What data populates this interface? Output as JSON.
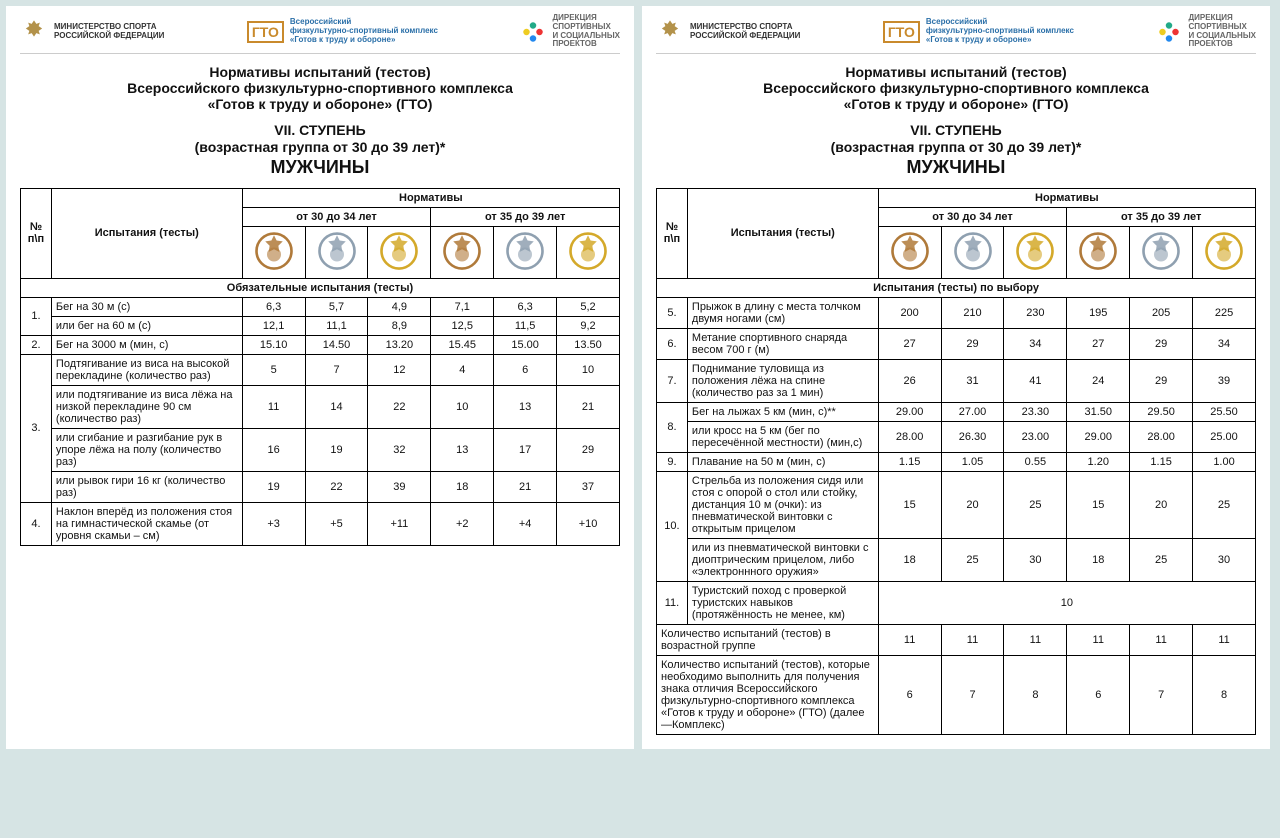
{
  "header": {
    "ministry_line1": "МИНИСТЕРСТВО СПОРТА",
    "ministry_line2": "РОССИЙСКОЙ ФЕДЕРАЦИИ",
    "gto_logo": "ГТО",
    "gto_line1": "Всероссийский",
    "gto_line2": "физкультурно-спортивный комплекс",
    "gto_line3": "«Готов к труду и обороне»",
    "dir_line1": "ДИРЕКЦИЯ",
    "dir_line2": "СПОРТИВНЫХ",
    "dir_line3": "И СОЦИАЛЬНЫХ",
    "dir_line4": "ПРОЕКТОВ"
  },
  "title": {
    "line1": "Нормативы испытаний (тестов)",
    "line2": "Всероссийского физкультурно-спортивного комплекса",
    "line3": "«Готов к труду и обороне» (ГТО)",
    "stage": "VII. СТУПЕНЬ",
    "age": "(возрастная группа от 30 до 39 лет)*",
    "gender": "МУЖЧИНЫ"
  },
  "thead": {
    "num": "№ п\\п",
    "test": "Испытания (тесты)",
    "norms": "Нормативы",
    "age1": "от 30 до 34 лет",
    "age2": "от 35 до 39 лет"
  },
  "badges": {
    "bronze": "#b07a3a",
    "silver": "#8fa0b0",
    "gold": "#d4a92a"
  },
  "left": {
    "section1": "Обязательные испытания (тесты)",
    "rows": [
      {
        "n": "1.",
        "t": "Бег на 30 м (с)",
        "a": [
          "6,3",
          "5,7",
          "4,9",
          "7,1",
          "6,3",
          "5,2"
        ]
      },
      {
        "n": "",
        "t": "или бег на 60 м (с)",
        "a": [
          "12,1",
          "11,1",
          "8,9",
          "12,5",
          "11,5",
          "9,2"
        ]
      },
      {
        "n": "2.",
        "t": "Бег на 3000 м (мин, с)",
        "a": [
          "15.10",
          "14.50",
          "13.20",
          "15.45",
          "15.00",
          "13.50"
        ]
      },
      {
        "n": "",
        "t": "Подтягивание из виса на высокой перекладине (количество раз)",
        "a": [
          "5",
          "7",
          "12",
          "4",
          "6",
          "10"
        ]
      },
      {
        "n": "",
        "t": "или подтягивание из виса лёжа на низкой перекладине 90 см (количество раз)",
        "a": [
          "11",
          "14",
          "22",
          "10",
          "13",
          "21"
        ]
      },
      {
        "n": "3.",
        "t": "или сгибание и разгибание рук в упоре лёжа на полу (количество раз)",
        "a": [
          "16",
          "19",
          "32",
          "13",
          "17",
          "29"
        ],
        "midnum": true
      },
      {
        "n": "",
        "t": "или рывок гири 16 кг (количество раз)",
        "a": [
          "19",
          "22",
          "39",
          "18",
          "21",
          "37"
        ]
      },
      {
        "n": "4.",
        "t": "Наклон вперёд из положения стоя на гимнастической скамье (от уровня скамьи – см)",
        "a": [
          "+3",
          "+5",
          "+11",
          "+2",
          "+4",
          "+10"
        ]
      }
    ]
  },
  "right": {
    "section": "Испытания (тесты) по выбору",
    "rows": [
      {
        "n": "5.",
        "t": "Прыжок в длину с места толчком двумя ногами (см)",
        "a": [
          "200",
          "210",
          "230",
          "195",
          "205",
          "225"
        ]
      },
      {
        "n": "6.",
        "t": "Метание спортивного снаряда весом 700 г (м)",
        "a": [
          "27",
          "29",
          "34",
          "27",
          "29",
          "34"
        ]
      },
      {
        "n": "7.",
        "t": "Поднимание туловища из положения лёжа на спине (количество раз за 1 мин)",
        "a": [
          "26",
          "31",
          "41",
          "24",
          "29",
          "39"
        ]
      },
      {
        "n": "8.",
        "t": "Бег на лыжах 5 км (мин, с)**",
        "a": [
          "29.00",
          "27.00",
          "23.30",
          "31.50",
          "29.50",
          "25.50"
        ],
        "pair": true
      },
      {
        "n": "",
        "t": "или кросс на 5 км (бег по пересечённой местности) (мин,с)",
        "a": [
          "28.00",
          "26.30",
          "23.00",
          "29.00",
          "28.00",
          "25.00"
        ]
      },
      {
        "n": "9.",
        "t": "Плавание на 50 м (мин, с)",
        "a": [
          "1.15",
          "1.05",
          "0.55",
          "1.20",
          "1.15",
          "1.00"
        ]
      },
      {
        "n": "10.",
        "t": "Стрельба из положения сидя или стоя с опорой о стол или стойку, дистанция 10 м (очки): из пневматической винтовки с открытым прицелом",
        "a": [
          "15",
          "20",
          "25",
          "15",
          "20",
          "25"
        ],
        "pair": true
      },
      {
        "n": "",
        "t": "или из пневматической винтовки с диоптрическим прицелом, либо «электроннного оружия»",
        "a": [
          "18",
          "25",
          "30",
          "18",
          "25",
          "30"
        ]
      },
      {
        "n": "11.",
        "t": "Туристский поход с проверкой туристских навыков (протяжённость не менее, км)",
        "span": "10"
      }
    ],
    "footer": [
      {
        "t": "Количество испытаний (тестов) в возрастной группе",
        "a": [
          "11",
          "11",
          "11",
          "11",
          "11",
          "11"
        ]
      },
      {
        "t": "Количество испытаний (тестов), которые необходимо выполнить для получения знака отличия Всероссийского физкультурно-спортивного комплекса «Готов к труду и обороне» (ГТО) (далее—Комплекс)",
        "a": [
          "6",
          "7",
          "8",
          "6",
          "7",
          "8"
        ]
      }
    ]
  }
}
